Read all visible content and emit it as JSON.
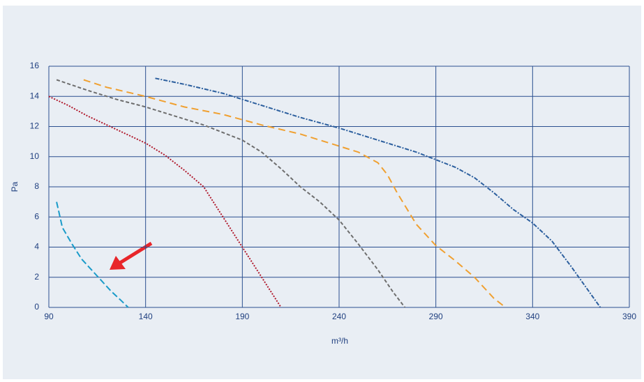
{
  "chart_data": {
    "type": "line",
    "xlabel": "m³/h",
    "ylabel": "Pa",
    "xlim": [
      90,
      390
    ],
    "xticks": [
      90,
      140,
      190,
      240,
      290,
      340,
      390
    ],
    "ylim": [
      0,
      16
    ],
    "yticks": [
      0,
      2,
      4,
      6,
      8,
      10,
      12,
      14,
      16
    ],
    "grid": true,
    "series": [
      {
        "color": "#1a9bc9",
        "dash": "9 4",
        "x": [
          94,
          97,
          102,
          107,
          112,
          117,
          122,
          127,
          131
        ],
        "values": [
          7,
          5.3,
          4.2,
          3.2,
          2.5,
          1.8,
          1.1,
          0.5,
          0
        ]
      },
      {
        "color": "#b0182b",
        "dash": "2 2",
        "x": [
          90,
          100,
          110,
          120,
          130,
          140,
          150,
          160,
          170,
          180,
          190,
          200,
          210
        ],
        "values": [
          14,
          13.4,
          12.7,
          12.1,
          11.5,
          10.9,
          10.1,
          9.1,
          8.0,
          6.0,
          4.0,
          2.0,
          0
        ]
      },
      {
        "color": "#6d6d6d",
        "dash": "5 3",
        "x": [
          94,
          110,
          125,
          140,
          155,
          170,
          180,
          190,
          200,
          210,
          220,
          230,
          240,
          250,
          260,
          268,
          274
        ],
        "values": [
          15.1,
          14.4,
          13.8,
          13.3,
          12.7,
          12.1,
          11.6,
          11.1,
          10.3,
          9.2,
          8.0,
          7.0,
          5.8,
          4.2,
          2.5,
          1.0,
          0
        ]
      },
      {
        "color": "#f0a030",
        "dash": "10 6",
        "x": [
          108,
          120,
          140,
          160,
          180,
          200,
          220,
          240,
          250,
          260,
          265,
          270,
          280,
          290,
          300,
          310,
          320,
          326
        ],
        "values": [
          15.1,
          14.6,
          14.0,
          13.3,
          12.8,
          12.1,
          11.5,
          10.7,
          10.3,
          9.6,
          8.8,
          7.6,
          5.5,
          4.1,
          3.1,
          2.0,
          0.6,
          0
        ]
      },
      {
        "color": "#2c5f9e",
        "dash": "6 2 2 2",
        "x": [
          145,
          160,
          180,
          200,
          220,
          240,
          260,
          280,
          290,
          300,
          310,
          320,
          330,
          340,
          350,
          360,
          370,
          375
        ],
        "values": [
          15.2,
          14.8,
          14.2,
          13.4,
          12.6,
          11.9,
          11.1,
          10.3,
          9.8,
          9.3,
          8.6,
          7.6,
          6.5,
          5.6,
          4.4,
          2.7,
          0.9,
          0
        ]
      }
    ]
  }
}
